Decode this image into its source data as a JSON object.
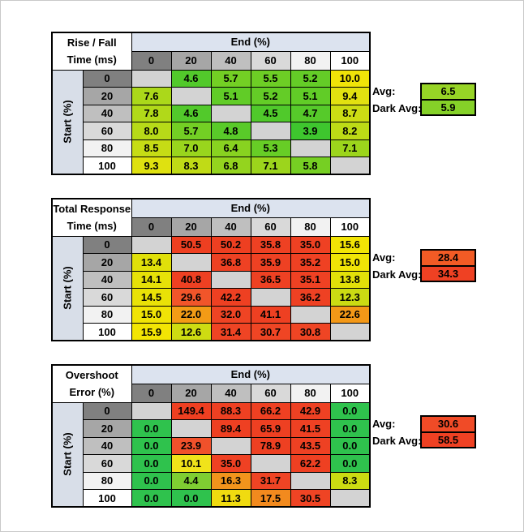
{
  "palette": {
    "end_band_color": "#DCE3EF",
    "start_band_color": "#D8DEE8",
    "diagonal_color": "#D3D3D3",
    "header_shades": [
      "#808080",
      "#A6A6A6",
      "#BFBFBF",
      "#D9D9D9",
      "#F2F2F2",
      "#FFFFFF"
    ]
  },
  "tables": [
    {
      "title_line1": "Rise / Fall",
      "title_line2": "Time (ms)",
      "end_axis_label": "End (%)",
      "start_axis_label": "Start (%)",
      "col_headers": [
        "0",
        "20",
        "40",
        "60",
        "80",
        "100"
      ],
      "row_headers": [
        "0",
        "20",
        "40",
        "60",
        "80",
        "100"
      ],
      "rows": [
        [
          {
            "v": "",
            "c": "#D3D3D3"
          },
          {
            "v": "4.6",
            "c": "#52C92B"
          },
          {
            "v": "5.7",
            "c": "#73CF24"
          },
          {
            "v": "5.5",
            "c": "#6DCE25"
          },
          {
            "v": "5.2",
            "c": "#64CC27"
          },
          {
            "v": "10.0",
            "c": "#F0E408"
          }
        ],
        [
          {
            "v": "7.6",
            "c": "#ABD81A"
          },
          {
            "v": "",
            "c": "#D3D3D3"
          },
          {
            "v": "5.1",
            "c": "#61CC27"
          },
          {
            "v": "5.2",
            "c": "#64CC27"
          },
          {
            "v": "5.1",
            "c": "#61CC27"
          },
          {
            "v": "9.4",
            "c": "#E2E110"
          }
        ],
        [
          {
            "v": "7.8",
            "c": "#B1D919"
          },
          {
            "v": "4.6",
            "c": "#52C92B"
          },
          {
            "v": "",
            "c": "#D3D3D3"
          },
          {
            "v": "4.5",
            "c": "#50C92B"
          },
          {
            "v": "4.7",
            "c": "#56CA2A"
          },
          {
            "v": "8.7",
            "c": "#CCDD14"
          }
        ],
        [
          {
            "v": "8.0",
            "c": "#B7DA18"
          },
          {
            "v": "5.7",
            "c": "#73CF24"
          },
          {
            "v": "4.8",
            "c": "#59CA29"
          },
          {
            "v": "",
            "c": "#D3D3D3"
          },
          {
            "v": "3.9",
            "c": "#3EC62E"
          },
          {
            "v": "8.2",
            "c": "#BDDB16"
          }
        ],
        [
          {
            "v": "8.5",
            "c": "#C6DC15"
          },
          {
            "v": "7.0",
            "c": "#99D51D"
          },
          {
            "v": "6.4",
            "c": "#88D220"
          },
          {
            "v": "5.3",
            "c": "#67CD26"
          },
          {
            "v": "",
            "c": "#D3D3D3"
          },
          {
            "v": "7.1",
            "c": "#9CD51C"
          }
        ],
        [
          {
            "v": "9.3",
            "c": "#DFE110"
          },
          {
            "v": "8.3",
            "c": "#C0DB16"
          },
          {
            "v": "6.8",
            "c": "#94D41E"
          },
          {
            "v": "7.1",
            "c": "#9CD51C"
          },
          {
            "v": "5.8",
            "c": "#76CF23"
          },
          {
            "v": "",
            "c": "#D3D3D3"
          }
        ]
      ],
      "legend": {
        "avg_label": "Avg:",
        "avg_value": "6.5",
        "avg_color": "#97D426",
        "dark_avg_label": "Dark Avg:",
        "dark_avg_value": "5.9",
        "dark_avg_color": "#85D128"
      }
    },
    {
      "title_line1": "Total Response",
      "title_line2": "Time (ms)",
      "end_axis_label": "End (%)",
      "start_axis_label": "Start (%)",
      "col_headers": [
        "0",
        "20",
        "40",
        "60",
        "80",
        "100"
      ],
      "row_headers": [
        "0",
        "20",
        "40",
        "60",
        "80",
        "100"
      ],
      "rows": [
        [
          {
            "v": "",
            "c": "#D3D3D3"
          },
          {
            "v": "50.5",
            "c": "#EE3F21"
          },
          {
            "v": "50.2",
            "c": "#EE3F21"
          },
          {
            "v": "35.8",
            "c": "#EE4123"
          },
          {
            "v": "35.0",
            "c": "#EF4123"
          },
          {
            "v": "15.6",
            "c": "#F2E405"
          }
        ],
        [
          {
            "v": "13.4",
            "c": "#E0E00A"
          },
          {
            "v": "",
            "c": "#D3D3D3"
          },
          {
            "v": "36.8",
            "c": "#EE4123"
          },
          {
            "v": "35.9",
            "c": "#EE4123"
          },
          {
            "v": "35.2",
            "c": "#EF4123"
          },
          {
            "v": "15.0",
            "c": "#F0E406"
          }
        ],
        [
          {
            "v": "14.1",
            "c": "#E6E108"
          },
          {
            "v": "40.8",
            "c": "#EE4022"
          },
          {
            "v": "",
            "c": "#D3D3D3"
          },
          {
            "v": "36.5",
            "c": "#EE4123"
          },
          {
            "v": "35.1",
            "c": "#EF4123"
          },
          {
            "v": "13.8",
            "c": "#E2E009"
          }
        ],
        [
          {
            "v": "14.5",
            "c": "#E9E207"
          },
          {
            "v": "29.6",
            "c": "#F1552A"
          },
          {
            "v": "42.2",
            "c": "#EE4022"
          },
          {
            "v": "",
            "c": "#D3D3D3"
          },
          {
            "v": "36.2",
            "c": "#EE4123"
          },
          {
            "v": "12.3",
            "c": "#CBDB13"
          }
        ],
        [
          {
            "v": "15.0",
            "c": "#F0E406"
          },
          {
            "v": "22.0",
            "c": "#F39B16"
          },
          {
            "v": "32.0",
            "c": "#EF4424"
          },
          {
            "v": "41.1",
            "c": "#EE4022"
          },
          {
            "v": "",
            "c": "#D3D3D3"
          },
          {
            "v": "22.6",
            "c": "#F39817"
          }
        ],
        [
          {
            "v": "15.9",
            "c": "#F2E504"
          },
          {
            "v": "12.6",
            "c": "#CEDC12"
          },
          {
            "v": "31.4",
            "c": "#EF4424"
          },
          {
            "v": "30.7",
            "c": "#EF4524"
          },
          {
            "v": "30.8",
            "c": "#EF4524"
          },
          {
            "v": "",
            "c": "#D3D3D3"
          }
        ]
      ],
      "legend": {
        "avg_label": "Avg:",
        "avg_value": "28.4",
        "avg_color": "#F25B25",
        "dark_avg_label": "Dark Avg:",
        "dark_avg_value": "34.3",
        "dark_avg_color": "#EF4123"
      }
    },
    {
      "title_line1": "Overshoot",
      "title_line2": "Error (%)",
      "end_axis_label": "End (%)",
      "start_axis_label": "Start (%)",
      "col_headers": [
        "0",
        "20",
        "40",
        "60",
        "80",
        "100"
      ],
      "row_headers": [
        "0",
        "20",
        "40",
        "60",
        "80",
        "100"
      ],
      "rows": [
        [
          {
            "v": "",
            "c": "#D3D3D3"
          },
          {
            "v": "149.4",
            "c": "#EE3F21"
          },
          {
            "v": "88.3",
            "c": "#EE4022"
          },
          {
            "v": "66.2",
            "c": "#EE4022"
          },
          {
            "v": "42.9",
            "c": "#EE4123"
          },
          {
            "v": "0.0",
            "c": "#2FC24D"
          }
        ],
        [
          {
            "v": "0.0",
            "c": "#2FC24D"
          },
          {
            "v": "",
            "c": "#D3D3D3"
          },
          {
            "v": "89.4",
            "c": "#EE4022"
          },
          {
            "v": "65.9",
            "c": "#EE4022"
          },
          {
            "v": "41.5",
            "c": "#EE4123"
          },
          {
            "v": "0.0",
            "c": "#2FC24D"
          }
        ],
        [
          {
            "v": "0.0",
            "c": "#2FC24D"
          },
          {
            "v": "23.9",
            "c": "#F0512B"
          },
          {
            "v": "",
            "c": "#D3D3D3"
          },
          {
            "v": "78.9",
            "c": "#EE4022"
          },
          {
            "v": "43.5",
            "c": "#EE4123"
          },
          {
            "v": "0.0",
            "c": "#2FC24D"
          }
        ],
        [
          {
            "v": "0.0",
            "c": "#2FC24D"
          },
          {
            "v": "10.1",
            "c": "#F0E31A"
          },
          {
            "v": "35.0",
            "c": "#EF4123"
          },
          {
            "v": "",
            "c": "#D3D3D3"
          },
          {
            "v": "62.2",
            "c": "#EE4022"
          },
          {
            "v": "0.0",
            "c": "#2FC24D"
          }
        ],
        [
          {
            "v": "0.0",
            "c": "#2FC24D"
          },
          {
            "v": "4.4",
            "c": "#7FCE32"
          },
          {
            "v": "16.3",
            "c": "#F2941C"
          },
          {
            "v": "31.7",
            "c": "#EF4424"
          },
          {
            "v": "",
            "c": "#D3D3D3"
          },
          {
            "v": "8.3",
            "c": "#CCDB12"
          }
        ],
        [
          {
            "v": "0.0",
            "c": "#2FC24D"
          },
          {
            "v": "0.0",
            "c": "#2FC24D"
          },
          {
            "v": "11.3",
            "c": "#F0DB10"
          },
          {
            "v": "17.5",
            "c": "#F28A1E"
          },
          {
            "v": "30.5",
            "c": "#EF4424"
          },
          {
            "v": "",
            "c": "#D3D3D3"
          }
        ]
      ],
      "legend": {
        "avg_label": "Avg:",
        "avg_value": "30.6",
        "avg_color": "#F04B27",
        "dark_avg_label": "Dark Avg:",
        "dark_avg_value": "58.5",
        "dark_avg_color": "#EF4123"
      }
    }
  ]
}
